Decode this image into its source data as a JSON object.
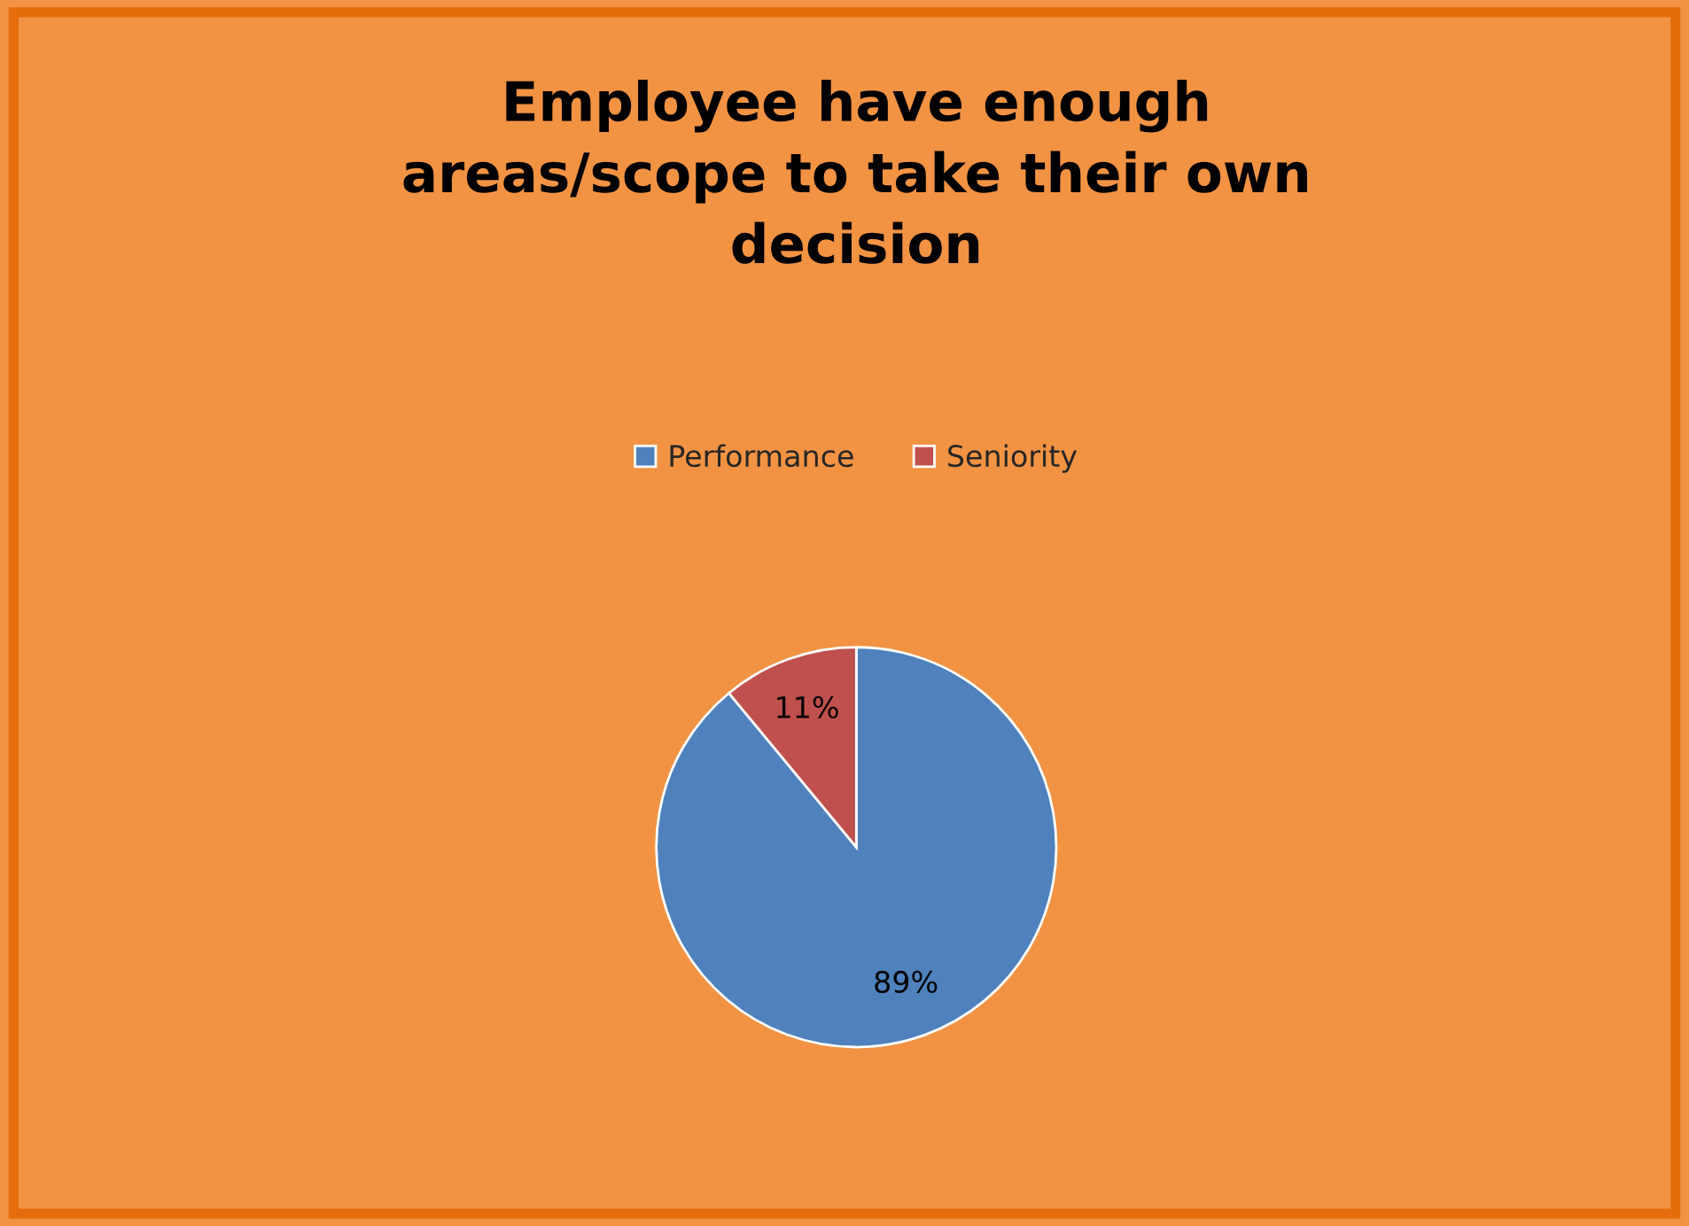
{
  "chart_data": {
    "type": "pie",
    "title": "Employee have enough\nareas/scope to take their own\ndecision",
    "categories": [
      "Performance",
      "Seniority"
    ],
    "values": [
      89,
      11
    ],
    "colors": [
      "#4f81bd",
      "#c0504d"
    ],
    "value_labels": [
      "89%",
      "11%"
    ],
    "legend": "top"
  }
}
